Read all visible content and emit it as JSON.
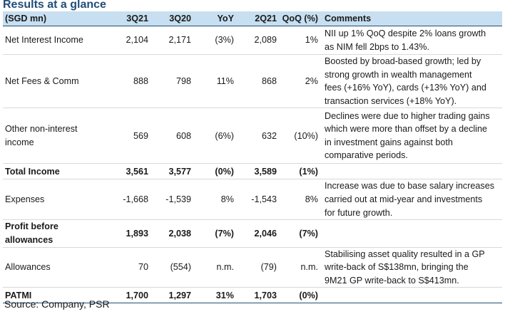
{
  "title": "Results at a glance",
  "headers": [
    "(SGD mn)",
    "3Q21",
    "3Q20",
    "YoY",
    "2Q21",
    "QoQ (%)",
    "Comments"
  ],
  "rows": [
    {
      "label": [
        "Net Interest Income"
      ],
      "v1": "2,104",
      "v2": "2,171",
      "yoy": "(3%)",
      "v3": "2,089",
      "qoq": "1%",
      "comment": [
        "NII up 1% QoQ despite 2% loans growth",
        "as NIM fell 2bps to 1.43%."
      ]
    },
    {
      "label": [
        "Net Fees & Comm"
      ],
      "v1": "888",
      "v2": "798",
      "yoy": "11%",
      "v3": "868",
      "qoq": "2%",
      "comment": [
        "Boosted by broad-based growth; led by",
        "strong growth in wealth management",
        "fees (+16% YoY), cards (+13% YoY) and",
        "transaction services (+18% YoY)."
      ]
    },
    {
      "label": [
        "Other non-interest",
        "income"
      ],
      "v1": "569",
      "v2": "608",
      "yoy": "(6%)",
      "v3": "632",
      "qoq": "(10%)",
      "comment": [
        "Declines were due to higher trading gains",
        "which were more than offset by a decline",
        "in investment gains against both",
        "comparative periods."
      ]
    },
    {
      "label": [
        "Total Income"
      ],
      "v1": "3,561",
      "v2": "3,577",
      "yoy": "(0%)",
      "v3": "3,589",
      "qoq": "(1%)",
      "comment": [
        ""
      ]
    },
    {
      "label": [
        "Expenses"
      ],
      "v1": "-1,668",
      "v2": "-1,539",
      "yoy": "8%",
      "v3": "-1,543",
      "qoq": "8%",
      "comment": [
        "Increase was due to base salary increases",
        "carried out at mid-year and investments",
        "for future growth."
      ]
    },
    {
      "label": [
        "Profit before",
        "allowances"
      ],
      "v1": "1,893",
      "v2": "2,038",
      "yoy": "(7%)",
      "v3": "2,046",
      "qoq": "(7%)",
      "comment": [
        ""
      ]
    },
    {
      "label": [
        "Allowances"
      ],
      "v1": "70",
      "v2": "(554)",
      "yoy": "n.m.",
      "v3": "(79)",
      "qoq": "n.m.",
      "comment": [
        "Stabilising asset quality resulted in a GP",
        "write-back of S$138mn, bringing the",
        "9M21 GP write-back to S$413mn."
      ]
    },
    {
      "label": [
        "PATMI"
      ],
      "v1": "1,700",
      "v2": "1,297",
      "yoy": "31%",
      "v3": "1,703",
      "qoq": "(0%)",
      "comment": [
        ""
      ]
    }
  ],
  "source": "Source: Company, PSR"
}
